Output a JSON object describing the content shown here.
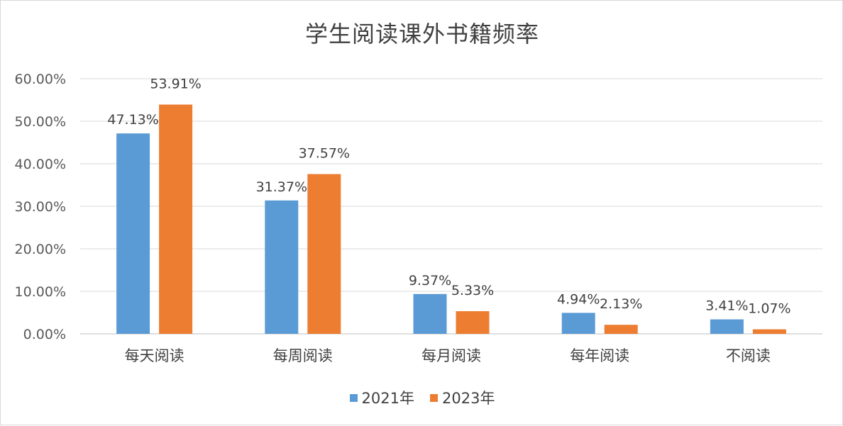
{
  "chart_data": {
    "type": "bar",
    "title": "学生阅读课外书籍频率",
    "categories": [
      "每天阅读",
      "每周阅读",
      "每月阅读",
      "每年阅读",
      "不阅读"
    ],
    "series": [
      {
        "name": "2021年",
        "values": [
          47.13,
          31.37,
          9.37,
          4.94,
          3.41
        ],
        "labels": [
          "47.13%",
          "31.37%",
          "9.37%",
          "4.94%",
          "3.41%"
        ],
        "color": "#5b9bd5"
      },
      {
        "name": "2023年",
        "values": [
          53.91,
          37.57,
          5.33,
          2.13,
          1.07
        ],
        "labels": [
          "53.91%",
          "37.57%",
          "5.33%",
          "2.13%",
          "1.07%"
        ],
        "color": "#ed7d31"
      }
    ],
    "ylim": [
      0,
      60
    ],
    "yticks": [
      "0.00%",
      "10.00%",
      "20.00%",
      "30.00%",
      "40.00%",
      "50.00%",
      "60.00%"
    ],
    "xlabel": "",
    "ylabel": "",
    "grid": true,
    "legend_position": "bottom"
  }
}
